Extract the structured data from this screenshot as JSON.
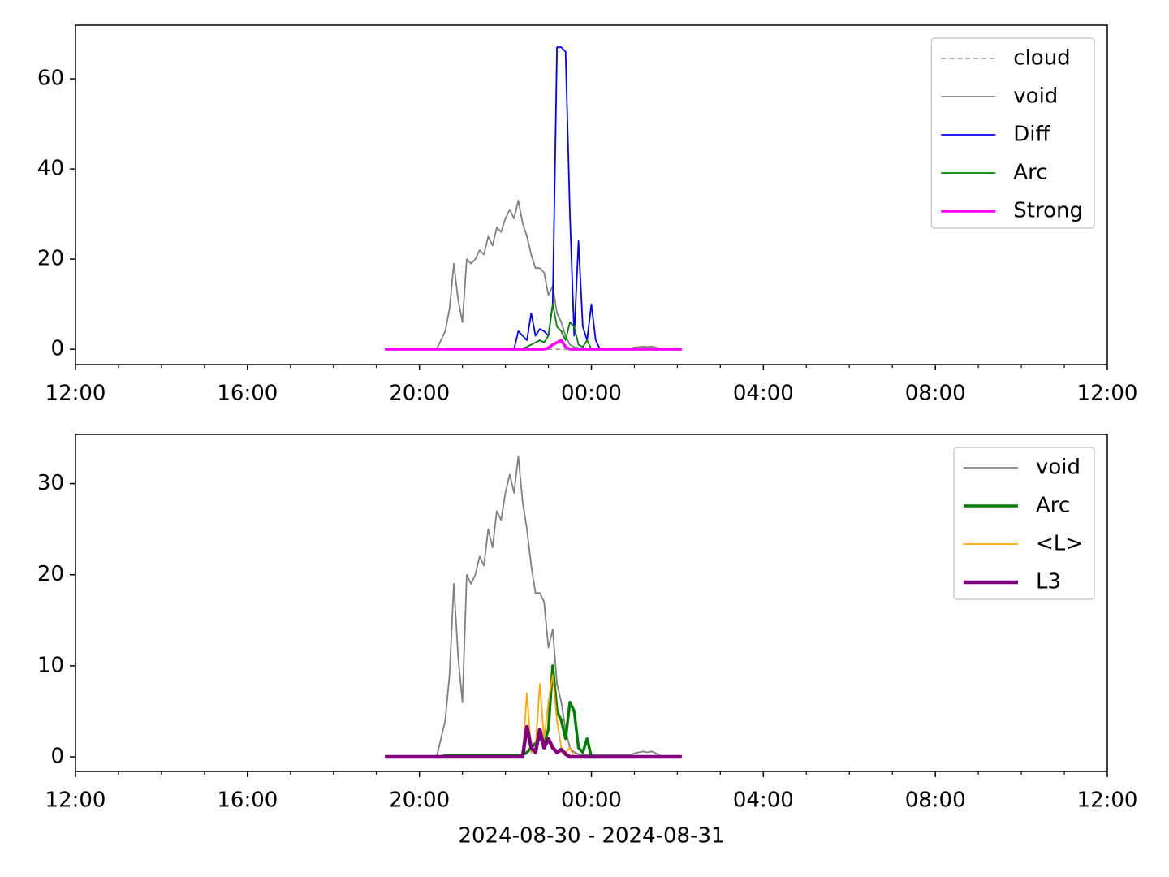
{
  "chart_data": [
    {
      "type": "line",
      "x": [
        19.2,
        19.3,
        19.4,
        19.5,
        19.6,
        19.7,
        19.8,
        19.9,
        20.0,
        20.1,
        20.2,
        20.3,
        20.4,
        20.5,
        20.6,
        20.7,
        20.8,
        20.9,
        21.0,
        21.1,
        21.2,
        21.3,
        21.4,
        21.5,
        21.6,
        21.7,
        21.8,
        21.9,
        22.0,
        22.1,
        22.2,
        22.3,
        22.4,
        22.5,
        22.6,
        22.7,
        22.8,
        22.9,
        23.0,
        23.1,
        23.2,
        23.3,
        23.4,
        23.5,
        23.6,
        23.7,
        23.8,
        23.9,
        24.0,
        24.1,
        24.2,
        24.3,
        24.4,
        24.5,
        24.6,
        24.7,
        24.8,
        24.9,
        25.0,
        25.1,
        25.2,
        25.3,
        25.4,
        25.5,
        25.6,
        25.7,
        25.8,
        25.9,
        26.0,
        26.1
      ],
      "series": [
        {
          "name": "cloud",
          "color": "#808080",
          "linewidth": 1.2,
          "linestyle": "dashed",
          "values": [
            0,
            0,
            0,
            0,
            0,
            0,
            0,
            0,
            0,
            0,
            0,
            0,
            0,
            0,
            0,
            0,
            0,
            0,
            0,
            0,
            0,
            0,
            0,
            0,
            0,
            0,
            0,
            0,
            0,
            0,
            0,
            0,
            0,
            0,
            0,
            0,
            0,
            0,
            0,
            0,
            0,
            0,
            0,
            0,
            0,
            0,
            0,
            0,
            0,
            0,
            0,
            0,
            0,
            0,
            0,
            0,
            0,
            0,
            0,
            0,
            0,
            0,
            0,
            0,
            0,
            0,
            0,
            0,
            0,
            0
          ]
        },
        {
          "name": "void",
          "color": "#808080",
          "linewidth": 1.8,
          "linestyle": "solid",
          "values": [
            0,
            0,
            0,
            0,
            0,
            0,
            0,
            0,
            0,
            0,
            0,
            0,
            0,
            2,
            4,
            9,
            19,
            11,
            6,
            20,
            19,
            20,
            22,
            21,
            25,
            23,
            27,
            26,
            29,
            31,
            29,
            33,
            28,
            25,
            21,
            18,
            18,
            17,
            12,
            14,
            8,
            6,
            3,
            1,
            0.5,
            0.3,
            0.2,
            0.2,
            0.2,
            0.2,
            0.2,
            0.2,
            0.2,
            0.2,
            0.2,
            0.2,
            0.2,
            0.2,
            0.4,
            0.5,
            0.6,
            0.5,
            0.6,
            0.4,
            0.1,
            0,
            0,
            0,
            0,
            0
          ]
        },
        {
          "name": "Diff",
          "color": "#0000ff",
          "linewidth": 1.8,
          "linestyle": "solid",
          "values": [
            0,
            0,
            0,
            0,
            0,
            0,
            0,
            0,
            0,
            0,
            0,
            0,
            0,
            0,
            0,
            0,
            0,
            0,
            0,
            0,
            0,
            0,
            0,
            0,
            0,
            0,
            0,
            0,
            0,
            0,
            0,
            4,
            3,
            2,
            8,
            3,
            4.5,
            4,
            3,
            10,
            67,
            67,
            66,
            30,
            3,
            24,
            5,
            2,
            10,
            2,
            0,
            0,
            0,
            0,
            0,
            0,
            0,
            0,
            0,
            0,
            0,
            0,
            0,
            0,
            0,
            0,
            0,
            0,
            0,
            0
          ]
        },
        {
          "name": "Arc",
          "color": "#008000",
          "linewidth": 1.8,
          "linestyle": "solid",
          "values": [
            0,
            0,
            0,
            0,
            0,
            0,
            0,
            0,
            0,
            0,
            0,
            0,
            0,
            0,
            0.2,
            0.2,
            0.2,
            0.2,
            0.2,
            0.2,
            0.2,
            0.2,
            0.2,
            0.2,
            0.2,
            0.2,
            0.2,
            0.2,
            0.2,
            0.2,
            0.2,
            0.2,
            0.2,
            0.5,
            1,
            1.5,
            2,
            1.5,
            3,
            10,
            5,
            4,
            2,
            6,
            5,
            1,
            0.5,
            2,
            0,
            0,
            0,
            0,
            0,
            0,
            0,
            0,
            0,
            0,
            0,
            0,
            0,
            0,
            0,
            0,
            0,
            0,
            0,
            0,
            0,
            0
          ]
        },
        {
          "name": "Strong",
          "color": "#ff00ff",
          "linewidth": 3.5,
          "linestyle": "solid",
          "values": [
            0,
            0,
            0,
            0,
            0,
            0,
            0,
            0,
            0,
            0,
            0,
            0,
            0,
            0,
            0,
            0,
            0,
            0,
            0,
            0,
            0,
            0,
            0,
            0,
            0,
            0,
            0,
            0,
            0,
            0,
            0,
            0,
            0,
            0,
            0,
            0,
            0,
            0,
            0.3,
            1,
            1.5,
            2,
            0.5,
            0,
            0,
            0,
            0,
            0,
            0,
            0,
            0,
            0,
            0,
            0,
            0,
            0,
            0,
            0,
            0,
            0,
            0,
            0,
            0,
            0,
            0,
            0,
            0,
            0,
            0,
            0
          ]
        }
      ],
      "xlim": [
        12,
        36
      ],
      "xticks": [
        {
          "value": 12,
          "label": "12:00"
        },
        {
          "value": 16,
          "label": "16:00"
        },
        {
          "value": 20,
          "label": "20:00"
        },
        {
          "value": 24,
          "label": "00:00"
        },
        {
          "value": 28,
          "label": "04:00"
        },
        {
          "value": 32,
          "label": "08:00"
        },
        {
          "value": 36,
          "label": "12:00"
        }
      ],
      "xminorticks": [
        13,
        14,
        15,
        17,
        18,
        19,
        21,
        22,
        23,
        25,
        26,
        27,
        29,
        30,
        31,
        33,
        34,
        35
      ],
      "ylim": [
        -3.4,
        71.9
      ],
      "yticks": [
        0,
        20,
        40,
        60
      ],
      "legend": "upper right"
    },
    {
      "type": "line",
      "x": [
        19.2,
        19.3,
        19.4,
        19.5,
        19.6,
        19.7,
        19.8,
        19.9,
        20.0,
        20.1,
        20.2,
        20.3,
        20.4,
        20.5,
        20.6,
        20.7,
        20.8,
        20.9,
        21.0,
        21.1,
        21.2,
        21.3,
        21.4,
        21.5,
        21.6,
        21.7,
        21.8,
        21.9,
        22.0,
        22.1,
        22.2,
        22.3,
        22.4,
        22.5,
        22.6,
        22.7,
        22.8,
        22.9,
        23.0,
        23.1,
        23.2,
        23.3,
        23.4,
        23.5,
        23.6,
        23.7,
        23.8,
        23.9,
        24.0,
        24.1,
        24.2,
        24.3,
        24.4,
        24.5,
        24.6,
        24.7,
        24.8,
        24.9,
        25.0,
        25.1,
        25.2,
        25.3,
        25.4,
        25.5,
        25.6,
        25.7,
        25.8,
        25.9,
        26.0,
        26.1
      ],
      "series": [
        {
          "name": "void",
          "color": "#808080",
          "linewidth": 1.8,
          "linestyle": "solid",
          "values": [
            0,
            0,
            0,
            0,
            0,
            0,
            0,
            0,
            0,
            0,
            0,
            0,
            0,
            2,
            4,
            9,
            19,
            11,
            6,
            20,
            19,
            20,
            22,
            21,
            25,
            23,
            27,
            26,
            29,
            31,
            29,
            33,
            28,
            25,
            21,
            18,
            18,
            17,
            12,
            14,
            8,
            6,
            3,
            1,
            0.5,
            0.3,
            0.2,
            0.2,
            0.2,
            0.2,
            0.2,
            0.2,
            0.2,
            0.2,
            0.2,
            0.2,
            0.2,
            0.2,
            0.4,
            0.5,
            0.6,
            0.5,
            0.6,
            0.4,
            0.1,
            0,
            0,
            0,
            0,
            0
          ]
        },
        {
          "name": "Arc",
          "color": "#008000",
          "linewidth": 3.5,
          "linestyle": "solid",
          "values": [
            0,
            0,
            0,
            0,
            0,
            0,
            0,
            0,
            0,
            0,
            0,
            0,
            0,
            0,
            0.2,
            0.2,
            0.2,
            0.2,
            0.2,
            0.2,
            0.2,
            0.2,
            0.2,
            0.2,
            0.2,
            0.2,
            0.2,
            0.2,
            0.2,
            0.2,
            0.2,
            0.2,
            0.2,
            0.5,
            1,
            1.5,
            2,
            1.5,
            3,
            10,
            5,
            4,
            2,
            6,
            5,
            1,
            0.5,
            2,
            0,
            0,
            0,
            0,
            0,
            0,
            0,
            0,
            0,
            0,
            0,
            0,
            0,
            0,
            0,
            0,
            0,
            0,
            0,
            0,
            0,
            0
          ]
        },
        {
          "name": "<L>",
          "color": "#ffa500",
          "linewidth": 1.8,
          "linestyle": "solid",
          "values": [
            0,
            0,
            0,
            0,
            0,
            0,
            0,
            0,
            0,
            0,
            0,
            0,
            0,
            0,
            0,
            0,
            0,
            0,
            0,
            0,
            0,
            0,
            0,
            0,
            0,
            0,
            0,
            0,
            0,
            0,
            0,
            0,
            0,
            7,
            0.5,
            1,
            8,
            2,
            6,
            9,
            4,
            1,
            0.5,
            1,
            0,
            0,
            0,
            0,
            0,
            0,
            0,
            0,
            0,
            0,
            0,
            0,
            0,
            0,
            0,
            0,
            0,
            0,
            0,
            0,
            0,
            0,
            0,
            0,
            0,
            0
          ]
        },
        {
          "name": "L3",
          "color": "#800080",
          "linewidth": 4.5,
          "linestyle": "solid",
          "values": [
            0,
            0,
            0,
            0,
            0,
            0,
            0,
            0,
            0,
            0,
            0,
            0,
            0,
            0,
            0,
            0,
            0,
            0,
            0,
            0,
            0,
            0,
            0,
            0,
            0,
            0,
            0,
            0,
            0,
            0,
            0,
            0,
            0,
            3.3,
            1,
            0.5,
            3,
            1,
            2,
            1,
            0.5,
            0.8,
            0.3,
            0,
            0,
            0,
            0,
            0,
            0,
            0,
            0,
            0,
            0,
            0,
            0,
            0,
            0,
            0,
            0,
            0,
            0,
            0,
            0,
            0,
            0,
            0,
            0,
            0,
            0,
            0
          ]
        }
      ],
      "xlim": [
        12,
        36
      ],
      "xticks": [
        {
          "value": 12,
          "label": "12:00"
        },
        {
          "value": 16,
          "label": "16:00"
        },
        {
          "value": 20,
          "label": "20:00"
        },
        {
          "value": 24,
          "label": "00:00"
        },
        {
          "value": 28,
          "label": "04:00"
        },
        {
          "value": 32,
          "label": "08:00"
        },
        {
          "value": 36,
          "label": "12:00"
        }
      ],
      "xminorticks": [
        13,
        14,
        15,
        17,
        18,
        19,
        21,
        22,
        23,
        25,
        26,
        27,
        29,
        30,
        31,
        33,
        34,
        35
      ],
      "ylim": [
        -1.6,
        35.4
      ],
      "yticks": [
        0,
        10,
        20,
        30
      ],
      "xlabel": "2024-08-30 - 2024-08-31",
      "legend": "upper right"
    }
  ]
}
